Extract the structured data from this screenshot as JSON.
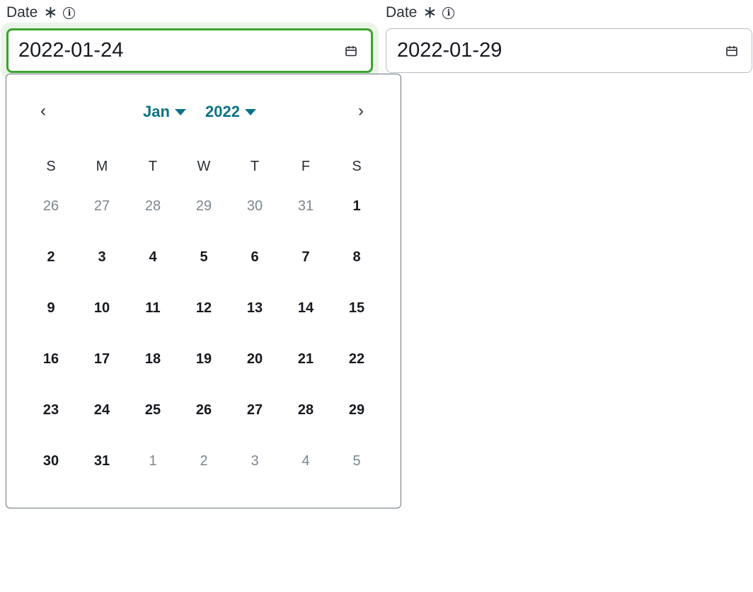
{
  "fields": [
    {
      "label": "Date",
      "required_icon": "asterisk-icon",
      "info_icon": "info-icon",
      "value": "2022-01-24",
      "focused": true
    },
    {
      "label": "Date",
      "required_icon": "asterisk-icon",
      "info_icon": "info-icon",
      "value": "2022-01-29",
      "focused": false
    }
  ],
  "colors": {
    "focus_border": "#3ba32e",
    "accent": "#0b7286",
    "popup_border": "#6b7580"
  },
  "calendar": {
    "month": "Jan",
    "year": "2022",
    "prev_label": "‹",
    "next_label": "›",
    "weekdays": [
      "S",
      "M",
      "T",
      "W",
      "T",
      "F",
      "S"
    ],
    "weeks": [
      [
        {
          "d": "26",
          "out": true
        },
        {
          "d": "27",
          "out": true
        },
        {
          "d": "28",
          "out": true
        },
        {
          "d": "29",
          "out": true
        },
        {
          "d": "30",
          "out": true
        },
        {
          "d": "31",
          "out": true
        },
        {
          "d": "1",
          "out": false
        }
      ],
      [
        {
          "d": "2",
          "out": false
        },
        {
          "d": "3",
          "out": false
        },
        {
          "d": "4",
          "out": false
        },
        {
          "d": "5",
          "out": false
        },
        {
          "d": "6",
          "out": false
        },
        {
          "d": "7",
          "out": false
        },
        {
          "d": "8",
          "out": false
        }
      ],
      [
        {
          "d": "9",
          "out": false
        },
        {
          "d": "10",
          "out": false
        },
        {
          "d": "11",
          "out": false
        },
        {
          "d": "12",
          "out": false
        },
        {
          "d": "13",
          "out": false
        },
        {
          "d": "14",
          "out": false
        },
        {
          "d": "15",
          "out": false
        }
      ],
      [
        {
          "d": "16",
          "out": false
        },
        {
          "d": "17",
          "out": false
        },
        {
          "d": "18",
          "out": false
        },
        {
          "d": "19",
          "out": false
        },
        {
          "d": "20",
          "out": false
        },
        {
          "d": "21",
          "out": false
        },
        {
          "d": "22",
          "out": false
        }
      ],
      [
        {
          "d": "23",
          "out": false
        },
        {
          "d": "24",
          "out": false
        },
        {
          "d": "25",
          "out": false
        },
        {
          "d": "26",
          "out": false
        },
        {
          "d": "27",
          "out": false
        },
        {
          "d": "28",
          "out": false
        },
        {
          "d": "29",
          "out": false
        }
      ],
      [
        {
          "d": "30",
          "out": false
        },
        {
          "d": "31",
          "out": false
        },
        {
          "d": "1",
          "out": true
        },
        {
          "d": "2",
          "out": true
        },
        {
          "d": "3",
          "out": true
        },
        {
          "d": "4",
          "out": true
        },
        {
          "d": "5",
          "out": true
        }
      ]
    ]
  }
}
